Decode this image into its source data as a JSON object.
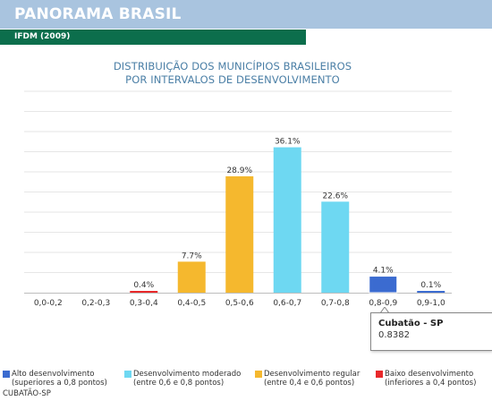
{
  "header": {
    "title": "PANORAMA BRASIL",
    "subtitle": "IFDM (2009)"
  },
  "chart_data": {
    "type": "bar",
    "title_line1": "DISTRIBUIÇÃO DOS MUNICÍPIOS BRASILEIROS",
    "title_line2": "POR INTERVALOS DE DESENVOLVIMENTO",
    "categories": [
      "0,0-0,2",
      "0,2-0,3",
      "0,3-0,4",
      "0,4-0,5",
      "0,5-0,6",
      "0,6-0,7",
      "0,7-0,8",
      "0,8-0,9",
      "0,9-1,0"
    ],
    "values": [
      0,
      0,
      0.4,
      7.7,
      28.9,
      36.1,
      22.6,
      4.1,
      0.1
    ],
    "value_labels": [
      "",
      "",
      "0.4%",
      "7.7%",
      "28.9%",
      "36.1%",
      "22.6%",
      "4.1%",
      "0.1%"
    ],
    "bar_colors": [
      "#f5b82e",
      "#f5b82e",
      "#e8282a",
      "#f5b82e",
      "#f5b82e",
      "#6ed8f2",
      "#6ed8f2",
      "#3b6bd0",
      "#3b6bd0"
    ],
    "ylim": [
      0,
      50
    ],
    "grid": true,
    "legend_position": "bottom"
  },
  "tooltip": {
    "title": "Cubatão - SP",
    "value": "0.8382"
  },
  "legend": [
    {
      "line1": "Alto desenvolvimento",
      "line2": "(superiores a 0,8 pontos)",
      "color": "#3b6bd0"
    },
    {
      "line1": "Desenvolvimento moderado",
      "line2": "(entre 0,6 e 0,8 pontos)",
      "color": "#6ed8f2"
    },
    {
      "line1": "Desenvolvimento regular",
      "line2": "(entre 0,4 e 0,6 pontos)",
      "color": "#f5b82e"
    },
    {
      "line1": "Baixo desenvolvimento",
      "line2": "(inferiores a 0,4 pontos)",
      "color": "#e8282a"
    }
  ],
  "footer": {
    "selection": "CUBATÃO-SP"
  }
}
